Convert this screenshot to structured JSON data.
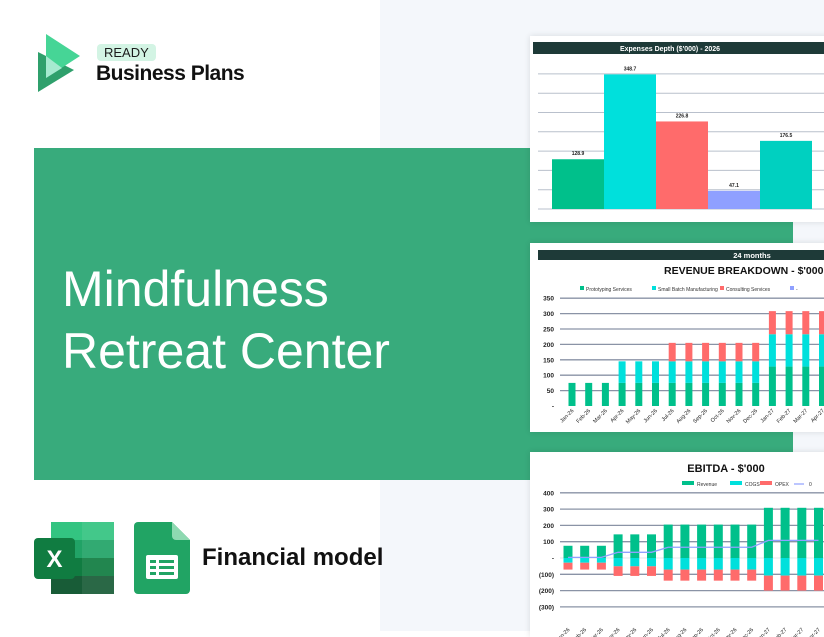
{
  "brand": {
    "badge": "READY",
    "name": "Business Plans"
  },
  "hero": {
    "line1": "Mindfulness",
    "line2": "Retreat Center"
  },
  "footer": {
    "label": "Financial model",
    "icons": [
      "excel-icon",
      "google-sheets-icon"
    ]
  },
  "colors": {
    "band": "#38ab7c",
    "header_bar": "#1e3a38",
    "green": "#00c08b",
    "cyan": "#00e0dc",
    "red": "#ff6b6b",
    "lavender": "#8fa0ff"
  },
  "chart_data": [
    {
      "type": "bar",
      "title": "Expenses Depth ($'000) - 2026",
      "values": [
        128.9,
        348.7,
        226.8,
        47.1,
        176.5
      ],
      "value_labels": [
        "128.9",
        "348.7",
        "226.8",
        "47.1",
        "176.5"
      ],
      "colors": [
        "#00c08b",
        "#00e0dc",
        "#ff6b6b",
        "#8fa0ff",
        "#00d0c0"
      ],
      "ylim": [
        0,
        350
      ],
      "grid": true
    },
    {
      "type": "bar",
      "stacked": true,
      "header": "24 months",
      "title": "REVENUE BREAKDOWN - $'000",
      "categories": [
        "Jan-26",
        "Feb-26",
        "Mar-26",
        "Apr-26",
        "May-26",
        "Jun-26",
        "Jul-26",
        "Aug-26",
        "Sep-26",
        "Oct-26",
        "Nov-26",
        "Dec-26",
        "Jan-27",
        "Feb-27",
        "Mar-27",
        "Apr-27"
      ],
      "series": [
        {
          "name": "Prototyping Services",
          "color": "#00c08b",
          "values": [
            75,
            75,
            75,
            75,
            75,
            75,
            75,
            75,
            75,
            75,
            75,
            75,
            128,
            128,
            128,
            128
          ]
        },
        {
          "name": "Small Batch Manufacturing",
          "color": "#00e0dc",
          "values": [
            0,
            0,
            0,
            70,
            70,
            70,
            70,
            70,
            70,
            70,
            70,
            70,
            105,
            105,
            105,
            105
          ]
        },
        {
          "name": "Consulting Services",
          "color": "#ff6b6b",
          "values": [
            0,
            0,
            0,
            0,
            0,
            0,
            60,
            60,
            60,
            60,
            60,
            60,
            75,
            75,
            75,
            75
          ]
        },
        {
          "name": "-",
          "color": "#8fa0ff",
          "values": [
            0,
            0,
            0,
            0,
            0,
            0,
            0,
            0,
            0,
            0,
            0,
            0,
            0,
            0,
            0,
            0
          ]
        }
      ],
      "yticks": [
        "-",
        "50",
        "100",
        "150",
        "200",
        "250",
        "300",
        "350"
      ],
      "ylim": [
        0,
        350
      ],
      "legend": "top",
      "grid": true
    },
    {
      "type": "bar",
      "stacked": true,
      "title": "EBITDA - $'000",
      "categories": [
        "Jan-26",
        "Feb-26",
        "Mar-26",
        "Apr-26",
        "May-26",
        "Jun-26",
        "Jul-26",
        "Aug-26",
        "Sep-26",
        "Oct-26",
        "Nov-26",
        "Dec-26",
        "Jan-27",
        "Feb-27",
        "Mar-27",
        "Apr-27"
      ],
      "series": [
        {
          "name": "Revenue",
          "color": "#00c08b",
          "values": [
            75,
            75,
            75,
            145,
            145,
            145,
            205,
            205,
            205,
            205,
            205,
            205,
            308,
            308,
            308,
            308
          ]
        },
        {
          "name": "COGS",
          "color": "#00e0dc",
          "values": [
            -29,
            -29,
            -29,
            -51,
            -51,
            -51,
            -71,
            -71,
            -71,
            -71,
            -71,
            -71,
            -108,
            -108,
            -108,
            -108
          ]
        },
        {
          "name": "OPEX",
          "color": "#ff6b6b",
          "values": [
            -42,
            -42,
            -42,
            -59,
            -59,
            -59,
            -68,
            -68,
            -68,
            -68,
            -68,
            -68,
            -92,
            -92,
            -92,
            -92
          ]
        },
        {
          "name": "0",
          "type": "line",
          "color": "#8fa0ff",
          "values": [
            4,
            4,
            4,
            35,
            35,
            35,
            66,
            66,
            66,
            66,
            66,
            66,
            108,
            108,
            108,
            108
          ]
        }
      ],
      "yticks": [
        "(300)",
        "(200)",
        "(100)",
        "-",
        "100",
        "200",
        "300",
        "400"
      ],
      "ylim": [
        -300,
        400
      ],
      "legend": "top-right",
      "grid": true
    }
  ]
}
